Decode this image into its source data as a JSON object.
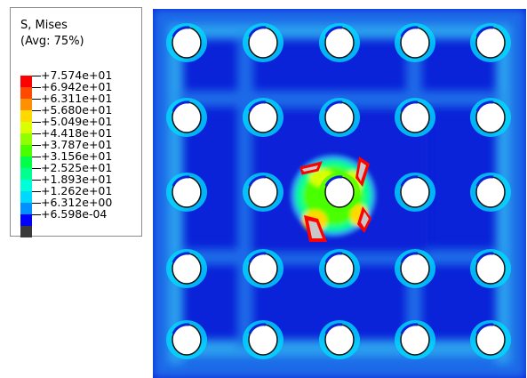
{
  "legend": {
    "title_line1": "S, Mises",
    "title_line2": "(Avg: 75%)",
    "levels": [
      {
        "label": "+7.574e+01",
        "color": "#ff0000"
      },
      {
        "label": "+6.942e+01",
        "color": "#ff4800"
      },
      {
        "label": "+6.311e+01",
        "color": "#ff9100"
      },
      {
        "label": "+5.680e+01",
        "color": "#ffd900"
      },
      {
        "label": "+5.049e+01",
        "color": "#d9ff00"
      },
      {
        "label": "+4.418e+01",
        "color": "#91ff00"
      },
      {
        "label": "+3.787e+01",
        "color": "#48ff00"
      },
      {
        "label": "+3.156e+01",
        "color": "#00ff48"
      },
      {
        "label": "+2.525e+01",
        "color": "#00ff91"
      },
      {
        "label": "+1.893e+01",
        "color": "#00ffd9"
      },
      {
        "label": "+1.262e+01",
        "color": "#00d9ff"
      },
      {
        "label": "+6.312e+00",
        "color": "#0091ff"
      },
      {
        "label": "+6.598e-04",
        "color": "#0000ff"
      }
    ],
    "bottom_swatch_color": "#3a3a3a"
  },
  "plot": {
    "background_color": "#0a22d8",
    "hole_color": "#ffffff",
    "hole_rows": 5,
    "hole_cols": 5
  }
}
